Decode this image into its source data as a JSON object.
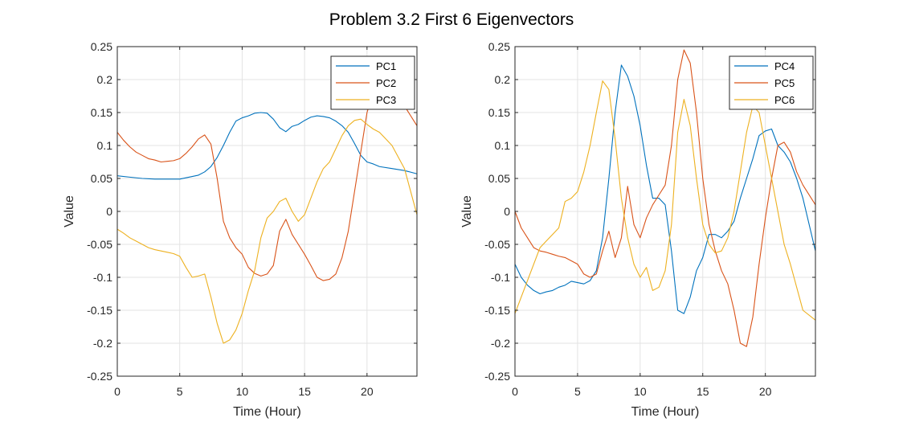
{
  "figure": {
    "title": "Problem 3.2 First 6 Eigenvectors"
  },
  "chart_data": [
    {
      "type": "line",
      "title": "",
      "xlabel": "Time (Hour)",
      "ylabel": "Value",
      "xlim": [
        0,
        24
      ],
      "ylim": [
        -0.25,
        0.25
      ],
      "xticks": [
        0,
        5,
        10,
        15,
        20
      ],
      "yticks": [
        -0.25,
        -0.2,
        -0.15,
        -0.1,
        -0.05,
        0,
        0.05,
        0.1,
        0.15,
        0.2,
        0.25
      ],
      "grid": true,
      "legend": "top-right",
      "series": [
        {
          "name": "PC1",
          "color": "#0072BD",
          "x": [
            0,
            1,
            2,
            3,
            4,
            5,
            6,
            6.5,
            7,
            7.5,
            8,
            8.5,
            9,
            9.5,
            10,
            10.5,
            11,
            11.5,
            12,
            12.5,
            13,
            13.5,
            14,
            14.5,
            15,
            15.5,
            16,
            16.5,
            17,
            17.5,
            18,
            18.5,
            19,
            19.5,
            20,
            20.5,
            21,
            22,
            23,
            24
          ],
          "y": [
            0.054,
            0.052,
            0.05,
            0.049,
            0.049,
            0.049,
            0.053,
            0.055,
            0.06,
            0.068,
            0.082,
            0.1,
            0.12,
            0.137,
            0.142,
            0.145,
            0.149,
            0.15,
            0.149,
            0.14,
            0.127,
            0.121,
            0.129,
            0.132,
            0.138,
            0.143,
            0.145,
            0.144,
            0.142,
            0.137,
            0.13,
            0.12,
            0.103,
            0.085,
            0.075,
            0.072,
            0.068,
            0.065,
            0.062,
            0.057
          ]
        },
        {
          "name": "PC2",
          "color": "#D95319",
          "x": [
            0,
            0.5,
            1,
            1.5,
            2,
            2.5,
            3,
            3.5,
            4,
            4.5,
            5,
            5.5,
            6,
            6.5,
            7,
            7.5,
            8,
            8.5,
            9,
            9.5,
            10,
            10.5,
            11,
            11.5,
            12,
            12.5,
            13,
            13.5,
            14,
            14.5,
            15,
            15.5,
            16,
            16.5,
            17,
            17.5,
            18,
            18.5,
            19,
            19.5,
            20,
            20.5,
            21,
            21.5,
            22,
            23,
            24
          ],
          "y": [
            0.12,
            0.108,
            0.098,
            0.09,
            0.085,
            0.08,
            0.078,
            0.075,
            0.076,
            0.077,
            0.08,
            0.088,
            0.098,
            0.11,
            0.116,
            0.102,
            0.05,
            -0.015,
            -0.04,
            -0.055,
            -0.065,
            -0.085,
            -0.094,
            -0.098,
            -0.095,
            -0.082,
            -0.03,
            -0.012,
            -0.035,
            -0.05,
            -0.065,
            -0.082,
            -0.1,
            -0.105,
            -0.103,
            -0.095,
            -0.07,
            -0.03,
            0.03,
            0.09,
            0.15,
            0.18,
            0.187,
            0.182,
            0.176,
            0.16,
            0.13
          ]
        },
        {
          "name": "PC3",
          "color": "#EDB120",
          "x": [
            0,
            0.5,
            1,
            1.5,
            2,
            2.5,
            3,
            3.5,
            4,
            4.5,
            5,
            5.5,
            6,
            6.5,
            7,
            7.5,
            8,
            8.5,
            9,
            9.5,
            10,
            10.5,
            11,
            11.5,
            12,
            12.5,
            13,
            13.5,
            14,
            14.5,
            15,
            15.5,
            16,
            16.5,
            17,
            17.5,
            18,
            18.5,
            19,
            19.5,
            20,
            20.5,
            21,
            21.5,
            22,
            23,
            24
          ],
          "y": [
            -0.027,
            -0.033,
            -0.04,
            -0.045,
            -0.05,
            -0.055,
            -0.058,
            -0.06,
            -0.062,
            -0.064,
            -0.068,
            -0.085,
            -0.1,
            -0.098,
            -0.095,
            -0.13,
            -0.17,
            -0.2,
            -0.195,
            -0.18,
            -0.155,
            -0.12,
            -0.09,
            -0.04,
            -0.01,
            0.0,
            0.015,
            0.02,
            0.0,
            -0.015,
            -0.005,
            0.02,
            0.045,
            0.065,
            0.075,
            0.095,
            0.115,
            0.13,
            0.138,
            0.14,
            0.132,
            0.125,
            0.12,
            0.11,
            0.1,
            0.065,
            -0.005
          ]
        }
      ]
    },
    {
      "type": "line",
      "title": "",
      "xlabel": "Time (Hour)",
      "ylabel": "Value",
      "xlim": [
        0,
        24
      ],
      "ylim": [
        -0.25,
        0.25
      ],
      "xticks": [
        0,
        5,
        10,
        15,
        20
      ],
      "yticks": [
        -0.25,
        -0.2,
        -0.15,
        -0.1,
        -0.05,
        0,
        0.05,
        0.1,
        0.15,
        0.2,
        0.25
      ],
      "grid": true,
      "legend": "top-right",
      "series": [
        {
          "name": "PC4",
          "color": "#0072BD",
          "x": [
            0,
            0.5,
            1,
            1.5,
            2,
            2.5,
            3,
            3.5,
            4,
            4.5,
            5,
            5.5,
            6,
            6.5,
            7,
            7.5,
            8,
            8.5,
            9,
            9.5,
            10,
            10.5,
            11,
            11.5,
            12,
            12.5,
            13,
            13.5,
            14,
            14.5,
            15,
            15.5,
            16,
            16.5,
            17,
            17.5,
            18,
            18.5,
            19,
            19.5,
            20,
            20.5,
            21,
            21.5,
            22,
            22.5,
            23,
            24
          ],
          "y": [
            -0.08,
            -0.1,
            -0.112,
            -0.12,
            -0.125,
            -0.122,
            -0.12,
            -0.115,
            -0.112,
            -0.106,
            -0.108,
            -0.11,
            -0.105,
            -0.09,
            -0.04,
            0.05,
            0.15,
            0.222,
            0.205,
            0.175,
            0.13,
            0.07,
            0.02,
            0.02,
            0.01,
            -0.06,
            -0.15,
            -0.155,
            -0.13,
            -0.09,
            -0.07,
            -0.035,
            -0.035,
            -0.04,
            -0.03,
            -0.015,
            0.02,
            0.05,
            0.08,
            0.115,
            0.122,
            0.125,
            0.1,
            0.09,
            0.075,
            0.05,
            0.02,
            -0.06
          ]
        },
        {
          "name": "PC5",
          "color": "#D95319",
          "x": [
            0,
            0.5,
            1,
            1.5,
            2,
            2.5,
            3,
            3.5,
            4,
            4.5,
            5,
            5.5,
            6,
            6.5,
            7,
            7.5,
            8,
            8.5,
            9,
            9.5,
            10,
            10.5,
            11,
            11.5,
            12,
            12.5,
            13,
            13.5,
            14,
            14.5,
            15,
            15.5,
            16,
            16.5,
            17,
            17.5,
            18,
            18.5,
            19,
            19.5,
            20,
            20.5,
            21,
            21.5,
            22,
            22.5,
            23,
            24
          ],
          "y": [
            0.0,
            -0.025,
            -0.04,
            -0.055,
            -0.06,
            -0.062,
            -0.065,
            -0.068,
            -0.07,
            -0.075,
            -0.08,
            -0.095,
            -0.1,
            -0.095,
            -0.06,
            -0.03,
            -0.07,
            -0.04,
            0.038,
            -0.02,
            -0.04,
            -0.01,
            0.01,
            0.025,
            0.04,
            0.1,
            0.2,
            0.245,
            0.225,
            0.15,
            0.05,
            -0.02,
            -0.06,
            -0.09,
            -0.11,
            -0.15,
            -0.2,
            -0.205,
            -0.16,
            -0.08,
            -0.01,
            0.05,
            0.1,
            0.105,
            0.09,
            0.06,
            0.04,
            0.01
          ]
        },
        {
          "name": "PC6",
          "color": "#EDB120",
          "x": [
            0,
            0.5,
            1,
            1.5,
            2,
            2.5,
            3,
            3.5,
            4,
            4.5,
            5,
            5.5,
            6,
            6.5,
            7,
            7.5,
            8,
            8.5,
            9,
            9.5,
            10,
            10.5,
            11,
            11.5,
            12,
            12.5,
            13,
            13.5,
            14,
            14.5,
            15,
            15.5,
            16,
            16.5,
            17,
            17.5,
            18,
            18.5,
            19,
            19.5,
            20,
            20.5,
            21,
            21.5,
            22,
            23,
            24
          ],
          "y": [
            -0.155,
            -0.13,
            -0.105,
            -0.08,
            -0.055,
            -0.045,
            -0.035,
            -0.025,
            0.015,
            0.02,
            0.03,
            0.06,
            0.1,
            0.15,
            0.198,
            0.185,
            0.11,
            0.02,
            -0.04,
            -0.08,
            -0.1,
            -0.085,
            -0.12,
            -0.115,
            -0.09,
            -0.02,
            0.12,
            0.17,
            0.13,
            0.05,
            -0.02,
            -0.05,
            -0.063,
            -0.06,
            -0.04,
            0.0,
            0.06,
            0.12,
            0.16,
            0.15,
            0.1,
            0.05,
            0.0,
            -0.05,
            -0.08,
            -0.15,
            -0.165
          ]
        }
      ]
    }
  ]
}
